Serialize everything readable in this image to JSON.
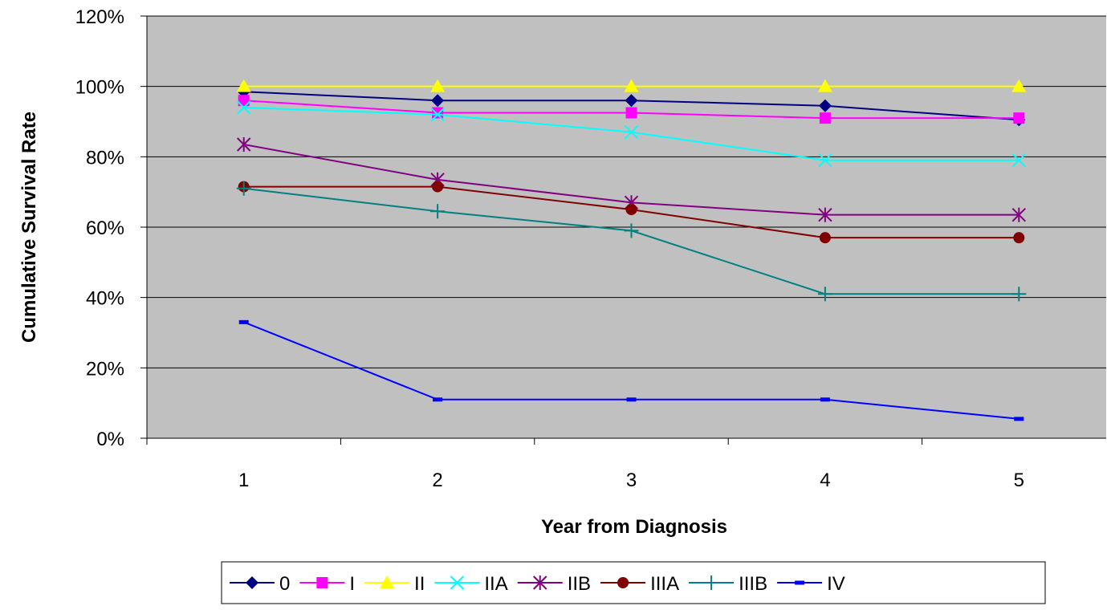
{
  "chart_data": {
    "type": "line",
    "xlabel": "Year from Diagnosis",
    "ylabel": "Cumulative Survival Rate",
    "categories": [
      "1",
      "2",
      "3",
      "4",
      "5"
    ],
    "y_ticks": [
      "0%",
      "20%",
      "40%",
      "60%",
      "80%",
      "100%",
      "120%"
    ],
    "ylim": [
      0,
      120
    ],
    "grid": true,
    "legend_position": "bottom",
    "plot_background": "#c0c0c0",
    "series": [
      {
        "name": "0",
        "color": "#000080",
        "marker": "diamond",
        "values": [
          98.5,
          96,
          96,
          94.5,
          90.5
        ]
      },
      {
        "name": "I",
        "color": "#ff00ff",
        "marker": "square",
        "values": [
          96,
          92.5,
          92.5,
          91,
          91
        ]
      },
      {
        "name": "II",
        "color": "#ffff00",
        "marker": "triangle",
        "values": [
          100,
          100,
          100,
          100,
          100
        ]
      },
      {
        "name": "IIA",
        "color": "#00ffff",
        "marker": "x",
        "values": [
          94,
          92,
          87,
          79,
          79
        ]
      },
      {
        "name": "IIB",
        "color": "#800080",
        "marker": "star",
        "values": [
          83.5,
          73.5,
          67,
          63.5,
          63.5
        ]
      },
      {
        "name": "IIIA",
        "color": "#800000",
        "marker": "circle",
        "values": [
          71.5,
          71.5,
          65,
          57,
          57
        ]
      },
      {
        "name": "IIIB",
        "color": "#008080",
        "marker": "plus",
        "values": [
          71,
          64.5,
          59,
          41,
          41
        ]
      },
      {
        "name": "IV",
        "color": "#0000ff",
        "marker": "dash",
        "values": [
          33,
          11,
          11,
          11,
          5.5
        ]
      }
    ]
  }
}
